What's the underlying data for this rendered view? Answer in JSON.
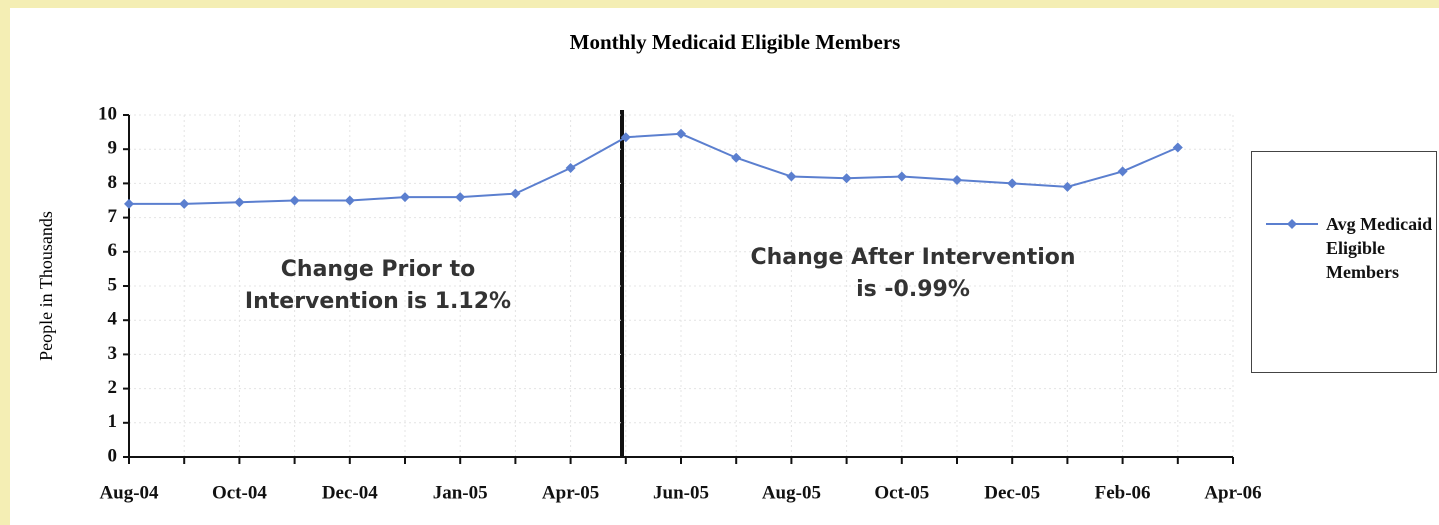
{
  "chart_data": {
    "type": "line",
    "title": "Monthly Medicaid Eligible Members",
    "ylabel": "People in Thousands",
    "categories": [
      "Aug-04",
      null,
      "Oct-04",
      null,
      "Dec-04",
      null,
      "Jan-05",
      null,
      "Apr-05",
      null,
      "Jun-05",
      null,
      "Aug-05",
      null,
      "Oct-05",
      null,
      "Dec-05",
      null,
      "Feb-06",
      null,
      "Apr-06"
    ],
    "series": [
      {
        "name": "Avg Medicaid Eligible Members",
        "color": "#5b7fcf",
        "values": [
          7.4,
          7.4,
          7.45,
          7.5,
          7.5,
          7.6,
          7.6,
          7.7,
          8.45,
          9.35,
          9.45,
          8.75,
          8.2,
          8.15,
          8.2,
          8.1,
          8.0,
          7.9,
          8.35,
          9.05,
          null
        ]
      }
    ],
    "ylim": [
      0,
      10
    ],
    "yticks": [
      0,
      1,
      2,
      3,
      4,
      5,
      6,
      7,
      8,
      9,
      10
    ],
    "grid": true,
    "legend": "right",
    "annotations": [
      [
        "Change Prior to",
        "Intervention is 1.12%"
      ],
      [
        "Change After Intervention",
        "is -0.99%"
      ]
    ]
  }
}
